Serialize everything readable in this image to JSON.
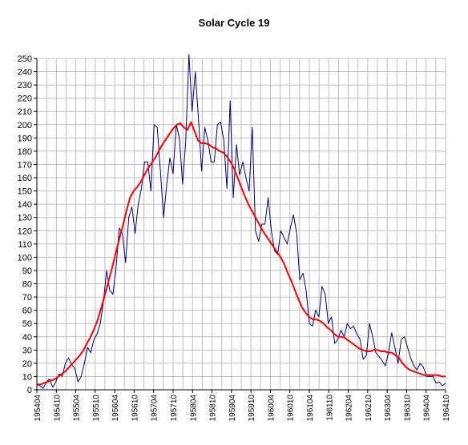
{
  "chart_data": {
    "type": "line",
    "title": "Solar Cycle 19",
    "xlabel": "",
    "ylabel": "",
    "ylim": [
      0,
      250
    ],
    "y_ticks": [
      0,
      10,
      20,
      30,
      40,
      50,
      60,
      70,
      80,
      90,
      100,
      110,
      120,
      130,
      140,
      150,
      160,
      170,
      180,
      190,
      200,
      210,
      220,
      230,
      240,
      250
    ],
    "x_tick_labels": [
      "195404",
      "195410",
      "195504",
      "195510",
      "195604",
      "195610",
      "195704",
      "195710",
      "195804",
      "195810",
      "195904",
      "195910",
      "196004",
      "196010",
      "196104",
      "196110",
      "196204",
      "196210",
      "196304",
      "196310",
      "196404",
      "196410"
    ],
    "grid": true,
    "legend": "none",
    "series": [
      {
        "color": "#000080",
        "values": [
          4,
          3,
          1,
          6,
          8,
          2,
          6,
          12,
          10,
          20,
          24,
          19,
          16,
          6,
          10,
          20,
          32,
          28,
          38,
          42,
          50,
          66,
          90,
          75,
          72,
          92,
          122,
          118,
          96,
          130,
          138,
          118,
          140,
          152,
          172,
          172,
          150,
          200,
          198,
          165,
          130,
          155,
          175,
          163,
          200,
          190,
          155,
          188,
          253,
          210,
          240,
          205,
          165,
          198,
          188,
          172,
          172,
          200,
          202,
          188,
          152,
          218,
          145,
          185,
          162,
          172,
          160,
          150,
          198,
          120,
          112,
          125,
          125,
          145,
          120,
          105,
          102,
          120,
          115,
          110,
          122,
          132,
          118,
          83,
          88,
          75,
          50,
          48,
          60,
          55,
          78,
          72,
          50,
          55,
          35,
          38,
          45,
          40,
          50,
          46,
          48,
          42,
          38,
          23,
          26,
          50,
          40,
          28,
          25,
          22,
          18,
          28,
          43,
          32,
          20,
          38,
          40,
          32,
          24,
          18,
          15,
          20,
          17,
          10,
          10,
          10,
          5,
          6,
          3,
          5
        ]
      },
      {
        "color": "#ff0000",
        "values": [
          4,
          4,
          5,
          6,
          7,
          8,
          10,
          12,
          14,
          17,
          20,
          23,
          26,
          30,
          35,
          40,
          46,
          53,
          62,
          72,
          82,
          92,
          103,
          114,
          124,
          135,
          145,
          150,
          153,
          157,
          162,
          167,
          171,
          175,
          180,
          185,
          189,
          193,
          197,
          200,
          201,
          198,
          196,
          202,
          195,
          188,
          186,
          186,
          185,
          183,
          182,
          180,
          179,
          176,
          172,
          167,
          160,
          153,
          146,
          140,
          135,
          130,
          125,
          120,
          116,
          112,
          108,
          104,
          100,
          95,
          88,
          82,
          75,
          68,
          62,
          58,
          55,
          53,
          53,
          52,
          50,
          47,
          45,
          42,
          40,
          40,
          39,
          37,
          35,
          33,
          31,
          30,
          29,
          29,
          30,
          30,
          29,
          29,
          28,
          28,
          26,
          24,
          20,
          17,
          15,
          14,
          13,
          12,
          11,
          11,
          11,
          11,
          11,
          10,
          10
        ]
      }
    ]
  }
}
